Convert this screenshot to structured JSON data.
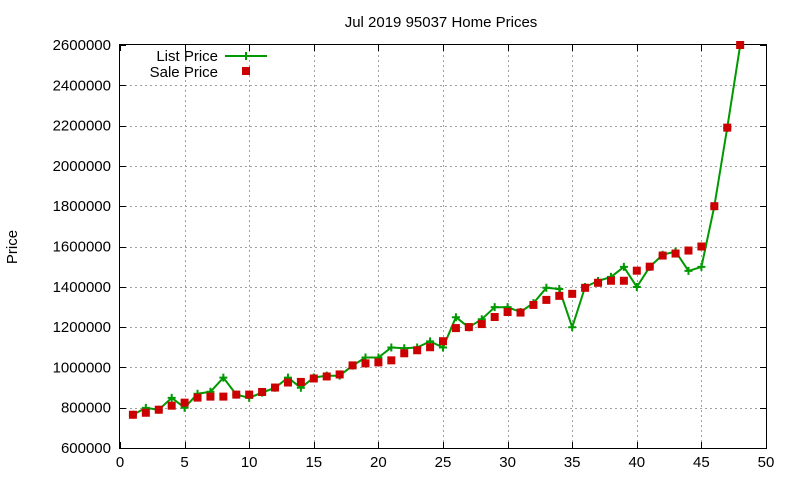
{
  "chart_data": {
    "type": "line",
    "title": "Jul 2019 95037 Home Prices",
    "xlabel": "",
    "ylabel": "Price",
    "xlim": [
      0,
      50
    ],
    "ylim": [
      600000,
      2600000
    ],
    "xticks": [
      0,
      5,
      10,
      15,
      20,
      25,
      30,
      35,
      40,
      45,
      50
    ],
    "yticks": [
      600000,
      800000,
      1000000,
      1200000,
      1400000,
      1600000,
      1800000,
      2000000,
      2200000,
      2400000,
      2600000
    ],
    "grid": true,
    "legend_position": "top-left",
    "series": [
      {
        "name": "List Price",
        "style": "line-with-plus-markers",
        "color": "#009900",
        "x": [
          1,
          2,
          3,
          4,
          5,
          6,
          7,
          8,
          9,
          10,
          11,
          12,
          13,
          14,
          15,
          16,
          17,
          18,
          19,
          20,
          21,
          22,
          23,
          24,
          25,
          26,
          27,
          28,
          29,
          30,
          31,
          32,
          33,
          34,
          35,
          36,
          37,
          38,
          39,
          40,
          41,
          42,
          43,
          44,
          45,
          46,
          47,
          48
        ],
        "values": [
          765000,
          799000,
          790000,
          849000,
          800000,
          869000,
          879000,
          949000,
          865000,
          849000,
          875000,
          899000,
          949000,
          899000,
          950000,
          959000,
          959000,
          1009000,
          1049000,
          1049000,
          1099000,
          1095000,
          1099000,
          1129000,
          1099000,
          1249000,
          1199000,
          1239000,
          1299000,
          1299000,
          1275000,
          1319000,
          1395000,
          1389000,
          1199000,
          1399000,
          1429000,
          1449000,
          1499000,
          1399000,
          1499000,
          1559000,
          1575000,
          1479000,
          1499000,
          1799000,
          2188000,
          2599000
        ]
      },
      {
        "name": "Sale Price",
        "style": "square-markers",
        "color": "#cc0000",
        "x": [
          1,
          2,
          3,
          4,
          5,
          6,
          7,
          8,
          9,
          10,
          11,
          12,
          13,
          14,
          15,
          16,
          17,
          18,
          19,
          20,
          21,
          22,
          23,
          24,
          25,
          26,
          27,
          28,
          29,
          30,
          31,
          32,
          33,
          34,
          35,
          36,
          37,
          38,
          39,
          40,
          41,
          42,
          43,
          44,
          45,
          46,
          47,
          48
        ],
        "values": [
          765000,
          775000,
          790000,
          810000,
          825000,
          850000,
          855000,
          855000,
          865000,
          865000,
          878000,
          900000,
          925000,
          928000,
          945000,
          955000,
          965000,
          1010000,
          1020000,
          1025000,
          1035000,
          1070000,
          1085000,
          1100000,
          1130000,
          1195000,
          1200000,
          1215000,
          1250000,
          1275000,
          1272000,
          1310000,
          1335000,
          1355000,
          1365000,
          1395000,
          1420000,
          1430000,
          1430000,
          1480000,
          1500000,
          1555000,
          1565000,
          1580000,
          1600000,
          1800000,
          2190000,
          2600000
        ]
      }
    ]
  }
}
